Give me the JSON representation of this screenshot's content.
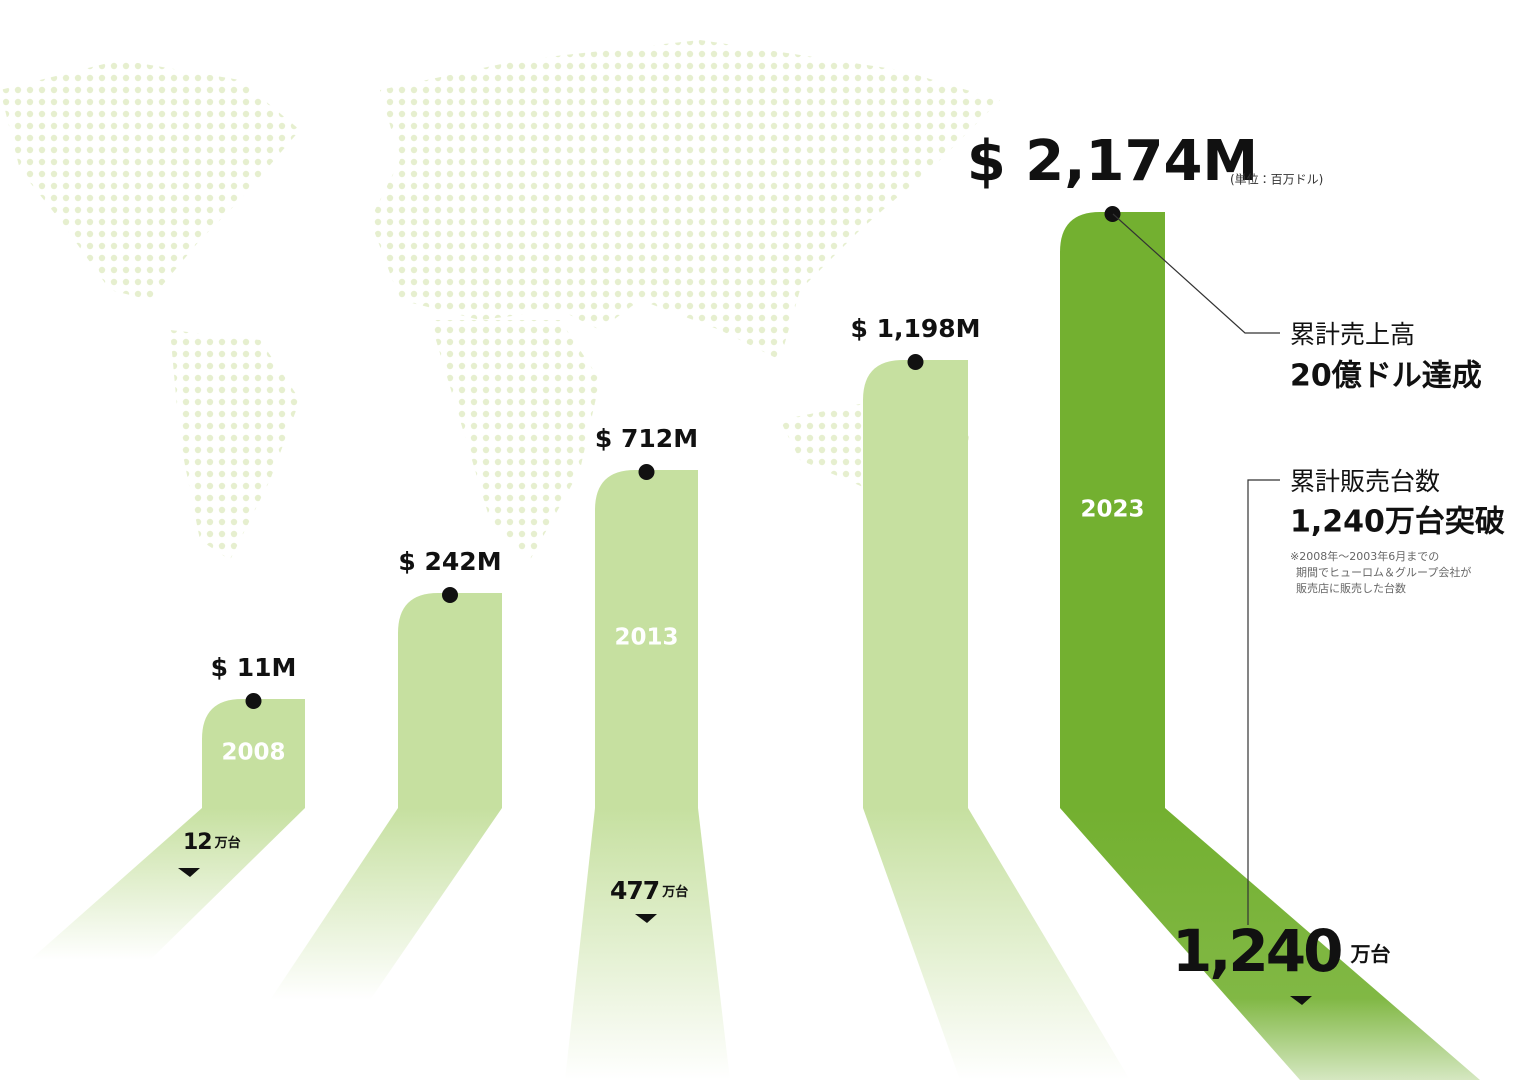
{
  "bars": [
    {
      "amount": "$ 11M",
      "year": "2008",
      "units": "12",
      "unit_suffix": "万台"
    },
    {
      "amount": "$ 242M"
    },
    {
      "amount": "$ 712M",
      "year": "2013",
      "units": "477",
      "unit_suffix": "万台"
    },
    {
      "amount": "$ 1,198M"
    },
    {
      "amount": "$ 2,174M",
      "amount_note": "(単位：百万ドル)",
      "year": "2023",
      "units": "1,240",
      "unit_suffix": "万台"
    }
  ],
  "callouts": [
    {
      "label": "累計売上高",
      "headline": "20億ドル達成"
    },
    {
      "label": "累計販売台数",
      "headline": "1,240万台突破",
      "note": [
        "※2008年～2003年6月までの",
        "期間でヒューロム＆グループ会社が",
        "販売店に販売した台数"
      ]
    }
  ]
}
